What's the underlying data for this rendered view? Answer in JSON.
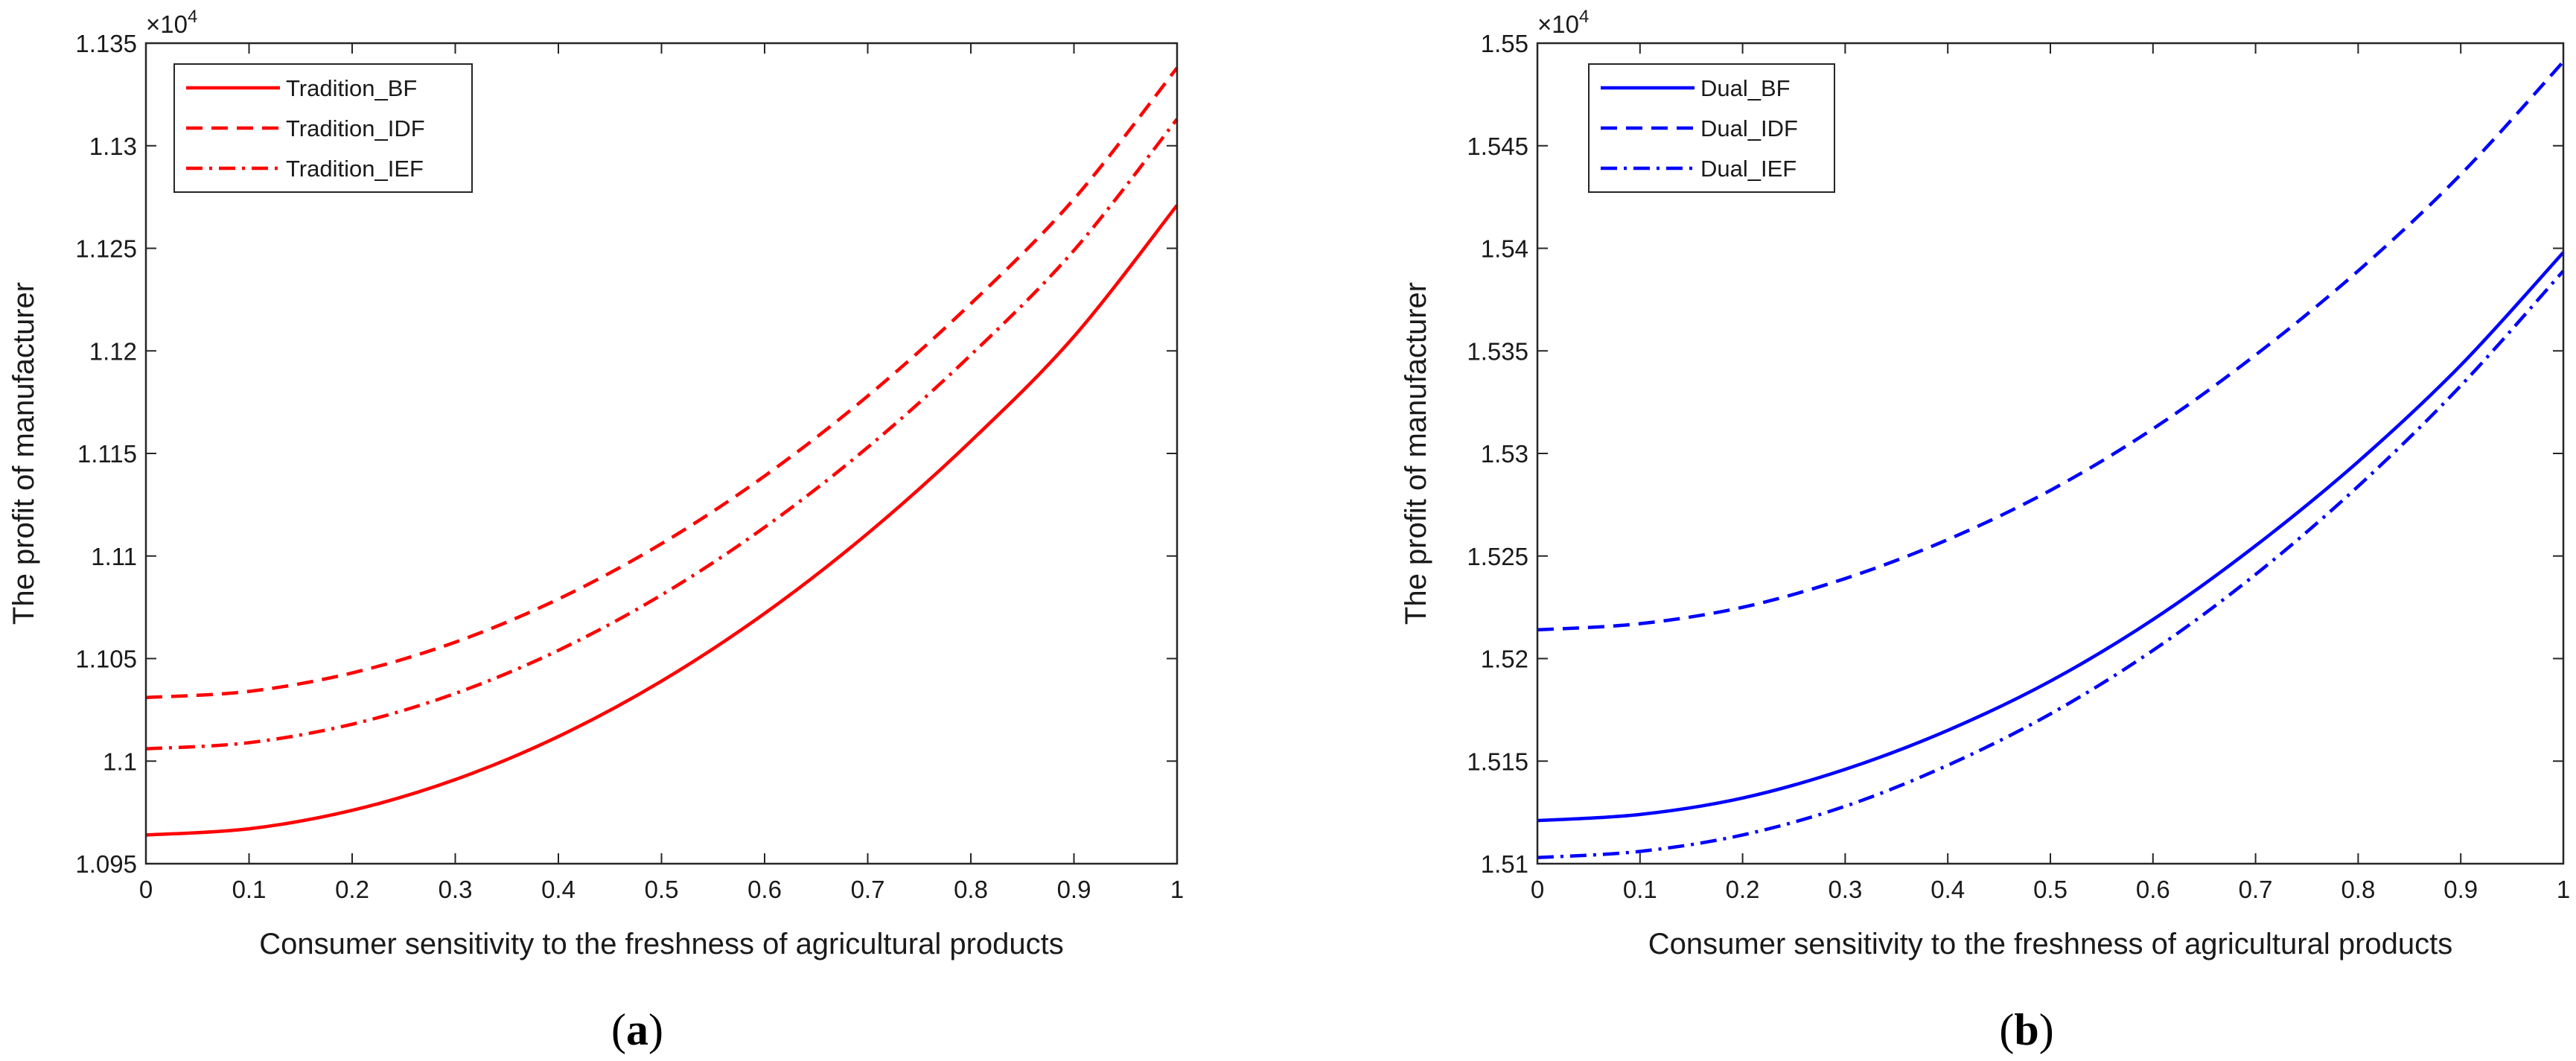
{
  "chart_data": [
    {
      "type": "line",
      "panel_label": "a",
      "xlabel": "Consumer sensitivity to the freshness of agricultural products",
      "ylabel": "The profit of manufacturer",
      "exponent_base": "×10",
      "exponent_power": "4",
      "xlim": [
        0,
        1
      ],
      "ylim": [
        1.095,
        1.135
      ],
      "xticks": [
        0,
        0.1,
        0.2,
        0.3,
        0.4,
        0.5,
        0.6,
        0.7,
        0.8,
        0.9,
        1
      ],
      "xtick_labels": [
        "0",
        "0.1",
        "0.2",
        "0.3",
        "0.4",
        "0.5",
        "0.6",
        "0.7",
        "0.8",
        "0.9",
        "1"
      ],
      "yticks": [
        1.095,
        1.1,
        1.105,
        1.11,
        1.115,
        1.12,
        1.125,
        1.13,
        1.135
      ],
      "ytick_labels": [
        "1.095",
        "1.1",
        "1.105",
        "1.11",
        "1.115",
        "1.12",
        "1.125",
        "1.13",
        "1.135"
      ],
      "legend_position": "top-left",
      "x": [
        0,
        0.1,
        0.2,
        0.3,
        0.4,
        0.5,
        0.6,
        0.7,
        0.8,
        0.9,
        1
      ],
      "series": [
        {
          "name": "Tradition_BF",
          "color": "#ff0000",
          "style": "solid",
          "values": [
            1.0964,
            1.0967,
            1.0976,
            1.0991,
            1.1012,
            1.1039,
            1.1072,
            1.1111,
            1.1156,
            1.1207,
            1.1271
          ]
        },
        {
          "name": "Tradition_IDF",
          "color": "#ff0000",
          "style": "dashed",
          "values": [
            1.1031,
            1.1034,
            1.1043,
            1.1058,
            1.1079,
            1.1106,
            1.1139,
            1.1178,
            1.1223,
            1.1274,
            1.1338
          ]
        },
        {
          "name": "Tradition_IEF",
          "color": "#ff0000",
          "style": "dashdot",
          "values": [
            1.1006,
            1.1009,
            1.1018,
            1.1033,
            1.1054,
            1.1081,
            1.1114,
            1.1153,
            1.1198,
            1.1249,
            1.1313
          ]
        }
      ]
    },
    {
      "type": "line",
      "panel_label": "b",
      "xlabel": "Consumer sensitivity to the freshness of agricultural products",
      "ylabel": "The profit of manufacturer",
      "exponent_base": "×10",
      "exponent_power": "4",
      "xlim": [
        0,
        1
      ],
      "ylim": [
        1.51,
        1.55
      ],
      "xticks": [
        0,
        0.1,
        0.2,
        0.3,
        0.4,
        0.5,
        0.6,
        0.7,
        0.8,
        0.9,
        1
      ],
      "xtick_labels": [
        "0",
        "0.1",
        "0.2",
        "0.3",
        "0.4",
        "0.5",
        "0.6",
        "0.7",
        "0.8",
        "0.9",
        "1"
      ],
      "yticks": [
        1.51,
        1.515,
        1.52,
        1.525,
        1.53,
        1.535,
        1.54,
        1.545,
        1.55
      ],
      "ytick_labels": [
        "1.51",
        "1.515",
        "1.52",
        "1.525",
        "1.53",
        "1.535",
        "1.54",
        "1.545",
        "1.55"
      ],
      "legend_position": "top-left",
      "x": [
        0,
        0.1,
        0.2,
        0.3,
        0.4,
        0.5,
        0.6,
        0.7,
        0.8,
        0.9,
        1
      ],
      "series": [
        {
          "name": "Dual_BF",
          "color": "#0000ff",
          "style": "solid",
          "values": [
            1.5121,
            1.5124,
            1.5132,
            1.5146,
            1.5165,
            1.5189,
            1.5219,
            1.5255,
            1.5296,
            1.5343,
            1.5398
          ]
        },
        {
          "name": "Dual_IDF",
          "color": "#0000ff",
          "style": "dashed",
          "values": [
            1.5214,
            1.5217,
            1.5225,
            1.5239,
            1.5258,
            1.5282,
            1.5312,
            1.5348,
            1.5389,
            1.5436,
            1.5491
          ]
        },
        {
          "name": "Dual_IEF",
          "color": "#0000ff",
          "style": "dashdot",
          "values": [
            1.5103,
            1.5106,
            1.5114,
            1.5128,
            1.5148,
            1.5173,
            1.5204,
            1.5241,
            1.5284,
            1.5333,
            1.5389
          ]
        }
      ]
    }
  ]
}
